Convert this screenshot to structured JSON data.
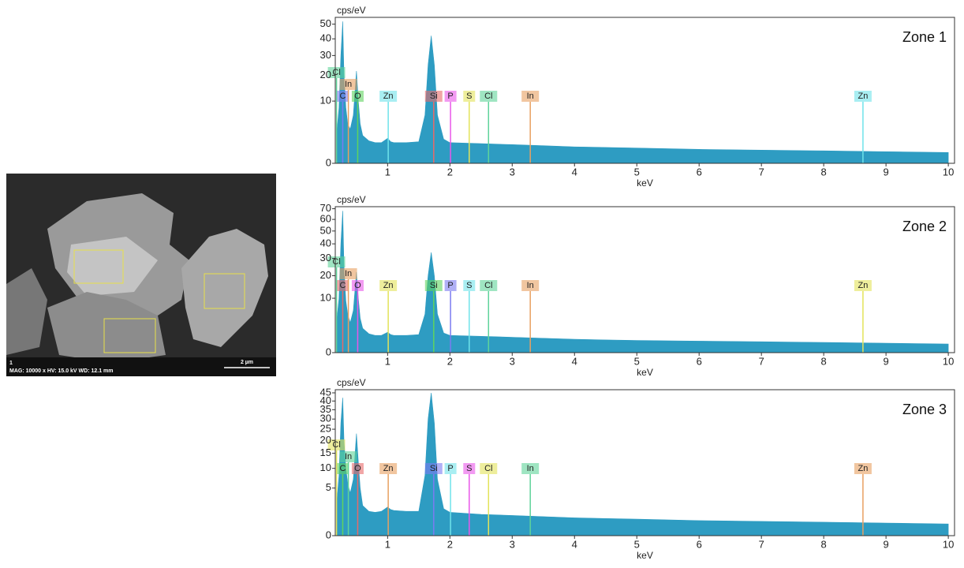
{
  "image": {
    "label": "1",
    "info": "MAG: 10000 x  HV: 15.0 kV  WD: 12.1 mm",
    "scale": "2 µm"
  },
  "chart_data": [
    {
      "type": "area",
      "title": "Zone 1",
      "y_label": "cps/eV",
      "x_label": "keV",
      "color": "#2e9cc2",
      "yscale": "sqrt",
      "xlim": [
        0.16,
        10.1
      ],
      "xticks": [
        1,
        2,
        3,
        4,
        5,
        6,
        7,
        8,
        9,
        10
      ],
      "ylim": [
        0,
        55
      ],
      "yticks": [
        0,
        10,
        20,
        30,
        40,
        50
      ],
      "x": [
        0.18,
        0.22,
        0.25,
        0.28,
        0.3,
        0.33,
        0.36,
        0.4,
        0.45,
        0.5,
        0.53,
        0.56,
        0.6,
        0.7,
        0.8,
        0.9,
        1.0,
        1.05,
        1.1,
        1.3,
        1.5,
        1.6,
        1.65,
        1.7,
        1.75,
        1.8,
        1.9,
        2.0,
        2.5,
        3,
        3.5,
        4,
        5,
        6,
        7,
        8,
        9,
        10
      ],
      "values": [
        2,
        8,
        30,
        52,
        20,
        8,
        4,
        3,
        6,
        22,
        10,
        4,
        2,
        1.3,
        1.1,
        1.1,
        1.6,
        1.2,
        1.1,
        1.1,
        1.2,
        6,
        25,
        42,
        25,
        6,
        1.5,
        1.1,
        1.0,
        0.9,
        0.8,
        0.7,
        0.6,
        0.5,
        0.45,
        0.4,
        0.35,
        0.3
      ],
      "markers": [
        {
          "label": "C",
          "x": 0.28,
          "color": "#7b7bf0"
        },
        {
          "label": "O",
          "x": 0.52,
          "color": "#5fd35f"
        },
        {
          "label": "Zn",
          "x": 1.01,
          "color": "#6fe3ea"
        },
        {
          "label": "Si",
          "x": 1.74,
          "color": "#e86a6a"
        },
        {
          "label": "P",
          "x": 2.01,
          "color": "#e957e9"
        },
        {
          "label": "S",
          "x": 2.31,
          "color": "#e3e35a"
        },
        {
          "label": "Cl",
          "x": 2.62,
          "color": "#5fd39a"
        },
        {
          "label": "In",
          "x": 3.29,
          "color": "#e8a061"
        },
        {
          "label": "Zn",
          "x": 8.63,
          "color": "#6fe3ea"
        },
        {
          "label": "In",
          "x": 0.37,
          "color": "#e8a061"
        },
        {
          "label": "Cl",
          "x": 0.18,
          "color": "#5fd39a"
        }
      ]
    },
    {
      "type": "area",
      "title": "Zone 2",
      "y_label": "cps/eV",
      "x_label": "keV",
      "color": "#2e9cc2",
      "yscale": "sqrt",
      "xlim": [
        0.16,
        10.1
      ],
      "xticks": [
        1,
        2,
        3,
        4,
        5,
        6,
        7,
        8,
        9,
        10
      ],
      "ylim": [
        0,
        72
      ],
      "yticks": [
        0,
        10,
        20,
        30,
        40,
        50,
        60,
        70
      ],
      "x": [
        0.18,
        0.22,
        0.25,
        0.28,
        0.3,
        0.33,
        0.36,
        0.4,
        0.45,
        0.5,
        0.53,
        0.56,
        0.6,
        0.7,
        0.8,
        0.9,
        1.0,
        1.05,
        1.1,
        1.3,
        1.5,
        1.6,
        1.65,
        1.7,
        1.75,
        1.8,
        1.9,
        2.0,
        2.5,
        3,
        3.5,
        4,
        5,
        6,
        7,
        8,
        9,
        10
      ],
      "values": [
        3,
        10,
        40,
        68,
        25,
        9,
        5,
        3,
        6,
        22,
        10,
        4,
        2,
        1.2,
        1.0,
        1.0,
        1.4,
        1.1,
        1.0,
        1.0,
        1.1,
        5,
        20,
        34,
        20,
        5,
        1.3,
        1.0,
        0.9,
        0.8,
        0.7,
        0.6,
        0.5,
        0.45,
        0.4,
        0.35,
        0.3,
        0.25
      ],
      "markers": [
        {
          "label": "C",
          "x": 0.28,
          "color": "#e86a6a"
        },
        {
          "label": "O",
          "x": 0.52,
          "color": "#e957e9"
        },
        {
          "label": "Zn",
          "x": 1.01,
          "color": "#e3e35a"
        },
        {
          "label": "Si",
          "x": 1.74,
          "color": "#5fd35f"
        },
        {
          "label": "P",
          "x": 2.01,
          "color": "#7b7bf0"
        },
        {
          "label": "S",
          "x": 2.31,
          "color": "#6fe3ea"
        },
        {
          "label": "Cl",
          "x": 2.62,
          "color": "#5fd39a"
        },
        {
          "label": "In",
          "x": 3.29,
          "color": "#e8a061"
        },
        {
          "label": "Zn",
          "x": 8.63,
          "color": "#e3e35a"
        },
        {
          "label": "In",
          "x": 0.37,
          "color": "#e8a061"
        },
        {
          "label": "Cl",
          "x": 0.18,
          "color": "#5fd39a"
        }
      ]
    },
    {
      "type": "area",
      "title": "Zone 3",
      "y_label": "cps/eV",
      "x_label": "keV",
      "color": "#2e9cc2",
      "yscale": "sqrt",
      "xlim": [
        0.16,
        10.1
      ],
      "xticks": [
        1,
        2,
        3,
        4,
        5,
        6,
        7,
        8,
        9,
        10
      ],
      "ylim": [
        0,
        47
      ],
      "yticks": [
        0,
        5,
        10,
        15,
        20,
        25,
        30,
        35,
        40,
        45
      ],
      "x": [
        0.18,
        0.22,
        0.25,
        0.28,
        0.3,
        0.33,
        0.36,
        0.4,
        0.45,
        0.5,
        0.53,
        0.56,
        0.6,
        0.7,
        0.8,
        0.9,
        1.0,
        1.05,
        1.1,
        1.3,
        1.5,
        1.6,
        1.65,
        1.7,
        1.75,
        1.8,
        1.9,
        2.0,
        2.5,
        3,
        3.5,
        4,
        5,
        6,
        7,
        8,
        9,
        10
      ],
      "values": [
        2,
        8,
        28,
        42,
        20,
        10,
        6,
        4,
        7,
        23,
        12,
        5,
        2,
        1.3,
        1.2,
        1.3,
        1.8,
        1.5,
        1.4,
        1.3,
        1.3,
        8,
        30,
        45,
        28,
        7,
        1.6,
        1.2,
        1.0,
        0.9,
        0.8,
        0.7,
        0.6,
        0.5,
        0.45,
        0.4,
        0.35,
        0.3
      ],
      "markers": [
        {
          "label": "C",
          "x": 0.28,
          "color": "#5fd35f"
        },
        {
          "label": "O",
          "x": 0.52,
          "color": "#e86a6a"
        },
        {
          "label": "Zn",
          "x": 1.01,
          "color": "#e8a061"
        },
        {
          "label": "Si",
          "x": 1.74,
          "color": "#7b7bf0"
        },
        {
          "label": "P",
          "x": 2.01,
          "color": "#6fe3ea"
        },
        {
          "label": "S",
          "x": 2.31,
          "color": "#e957e9"
        },
        {
          "label": "Cl",
          "x": 2.62,
          "color": "#e3e35a"
        },
        {
          "label": "In",
          "x": 3.29,
          "color": "#5fd39a"
        },
        {
          "label": "Zn",
          "x": 8.63,
          "color": "#e8a061"
        },
        {
          "label": "In",
          "x": 0.37,
          "color": "#5fd39a"
        },
        {
          "label": "Cl",
          "x": 0.18,
          "color": "#e3e35a"
        }
      ]
    }
  ]
}
